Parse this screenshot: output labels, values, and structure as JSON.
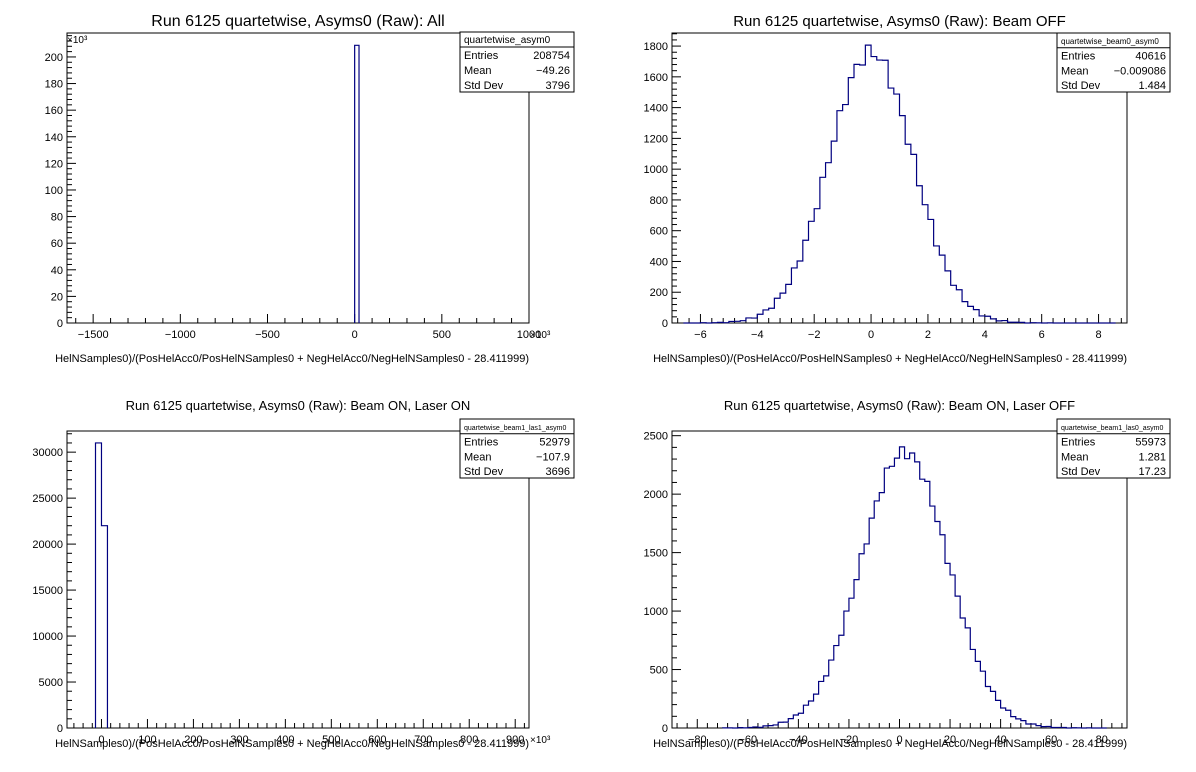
{
  "chart_data": [
    {
      "type": "histogram",
      "title": "Run 6125 quartetwise, Asyms0 (Raw): All",
      "xlabel": "HelNSamples0)/(PosHelAcc0/PosHelNSamples0 + NegHelAcc0/NegHelNSamples0 - 28.411999)",
      "x_exponent": "×10³",
      "y_exponent": "×10³",
      "xlim": [
        -1650,
        1000
      ],
      "ylim": [
        0,
        218
      ],
      "xticks": [
        -1500,
        -1000,
        -500,
        0,
        500,
        1000
      ],
      "yticks": [
        0,
        20,
        40,
        60,
        80,
        100,
        120,
        140,
        160,
        180,
        200
      ],
      "bins": [
        {
          "x0": 0,
          "x1": 25,
          "y": 208.754
        }
      ],
      "stats": {
        "name": "quartetwise_asym0",
        "entries": "208754",
        "mean": "−49.26",
        "std_dev": "3796"
      }
    },
    {
      "type": "histogram",
      "title": "Run 6125 quartetwise, Asyms0 (Raw): Beam OFF",
      "xlabel": "HelNSamples0)/(PosHelAcc0/PosHelNSamples0 + NegHelAcc0/NegHelNSamples0 - 28.411999)",
      "x_exponent": "",
      "y_exponent": "",
      "xlim": [
        -7,
        9
      ],
      "ylim": [
        0,
        1885
      ],
      "xticks": [
        -6,
        -4,
        -2,
        0,
        2,
        4,
        6,
        8
      ],
      "yticks": [
        0,
        200,
        400,
        600,
        800,
        1000,
        1200,
        1400,
        1600,
        1800
      ],
      "gauss": {
        "mean": 0,
        "sigma": 1.484,
        "peak": 1760,
        "start": -6.6,
        "end": 8.6,
        "width": 0.2,
        "noise": 50
      },
      "stats": {
        "name": "quartetwise_beam0_asym0",
        "entries": "40616",
        "mean": "−0.009086",
        "std_dev": "1.484"
      }
    },
    {
      "type": "histogram",
      "title": "Run 6125 quartetwise, Asyms0 (Raw): Beam ON, Laser ON",
      "xlabel": "HelNSamples0)/(PosHelAcc0/PosHelNSamples0 + NegHelAcc0/NegHelNSamples0 - 28.411999)",
      "x_exponent": "×10³",
      "y_exponent": "",
      "xlim": [
        -75,
        930
      ],
      "ylim": [
        0,
        32300
      ],
      "xticks": [
        0,
        100,
        200,
        300,
        400,
        500,
        600,
        700,
        800,
        900
      ],
      "yticks": [
        0,
        5000,
        10000,
        15000,
        20000,
        25000,
        30000
      ],
      "bins": [
        {
          "x0": -13,
          "x1": 0,
          "y": 31000
        },
        {
          "x0": 0,
          "x1": 13,
          "y": 22000
        }
      ],
      "stats": {
        "name": "quartetwise_beam1_las1_asym0",
        "entries": "52979",
        "mean": "−107.9",
        "std_dev": "3696"
      }
    },
    {
      "type": "histogram",
      "title": "Run 6125 quartetwise, Asyms0 (Raw): Beam ON, Laser OFF",
      "xlabel": "HelNSamples0)/(PosHelAcc0/PosHelNSamples0 + NegHelAcc0/NegHelNSamples0 - 28.411999)",
      "x_exponent": "",
      "y_exponent": "",
      "xlim": [
        -90,
        90
      ],
      "ylim": [
        0,
        2540
      ],
      "xticks": [
        -80,
        -60,
        -40,
        -20,
        0,
        20,
        40,
        60,
        80
      ],
      "yticks": [
        0,
        500,
        1000,
        1500,
        2000,
        2500
      ],
      "gauss": {
        "mean": 2,
        "sigma": 17.23,
        "peak": 2360,
        "start": -70,
        "end": 82,
        "width": 2,
        "noise": 45
      },
      "stats": {
        "name": "quartetwise_beam1_las0_asym0",
        "entries": "55973",
        "mean": "1.281",
        "std_dev": "17.23"
      }
    }
  ],
  "stats_labels": {
    "entries": "Entries",
    "mean": "Mean",
    "std_dev": "Std Dev"
  }
}
